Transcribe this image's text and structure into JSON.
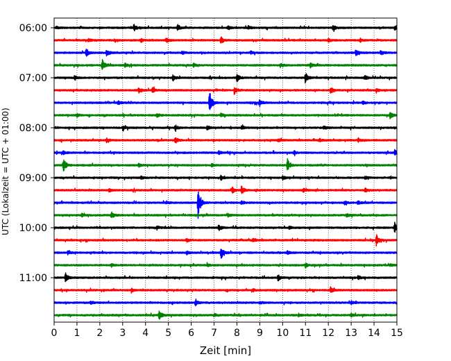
{
  "chart_data": {
    "type": "line",
    "title": "",
    "xlabel": "Zeit  [min]",
    "ylabel": "UTC (Lokalzeit = UTC + 01:00)",
    "xlim": [
      0,
      15
    ],
    "x_ticks": [
      0,
      1,
      2,
      3,
      4,
      5,
      6,
      7,
      8,
      9,
      10,
      11,
      12,
      13,
      14,
      15
    ],
    "x_tick_labels": [
      "0",
      "1",
      "2",
      "3",
      "4",
      "5",
      "6",
      "7",
      "8",
      "9",
      "10",
      "11",
      "12",
      "13",
      "14",
      "15"
    ],
    "grid": "vertical dotted",
    "trace_interval_min": 15,
    "start_time": "06:00",
    "y_tick_labels": [
      "06:00",
      "07:00",
      "08:00",
      "09:00",
      "10:00",
      "11:00"
    ],
    "colors": {
      "black": "#000000",
      "red": "#ff0000",
      "blue": "#0000ff",
      "green": "#008000"
    },
    "series": [
      {
        "row": 0,
        "color": "black",
        "events": [
          [
            0.1,
            0.1
          ],
          [
            3.5,
            0.3
          ],
          [
            5.4,
            0.3
          ],
          [
            7.6,
            0.2
          ],
          [
            8.5,
            0.2
          ],
          [
            12.2,
            0.25
          ],
          [
            14.9,
            0.2
          ]
        ]
      },
      {
        "row": 1,
        "color": "red",
        "events": [
          [
            1.5,
            0.15
          ],
          [
            3.8,
            0.15
          ],
          [
            4.9,
            0.2
          ],
          [
            7.3,
            0.35
          ],
          [
            12.0,
            0.15
          ],
          [
            13.4,
            0.15
          ]
        ]
      },
      {
        "row": 2,
        "color": "blue",
        "events": [
          [
            1.4,
            0.35
          ],
          [
            2.3,
            0.3
          ],
          [
            5.6,
            0.15
          ],
          [
            8.6,
            0.15
          ],
          [
            13.2,
            0.3
          ],
          [
            14.3,
            0.2
          ]
        ]
      },
      {
        "row": 3,
        "color": "green",
        "events": [
          [
            2.1,
            0.55
          ],
          [
            3.1,
            0.2
          ],
          [
            6.1,
            0.15
          ],
          [
            9.9,
            0.15
          ],
          [
            11.2,
            0.25
          ]
        ]
      },
      {
        "row": 4,
        "color": "black",
        "events": [
          [
            0.9,
            0.2
          ],
          [
            5.2,
            0.25
          ],
          [
            8.0,
            0.4
          ],
          [
            11.0,
            0.55
          ],
          [
            13.6,
            0.2
          ]
        ]
      },
      {
        "row": 5,
        "color": "red",
        "events": [
          [
            3.7,
            0.3
          ],
          [
            4.3,
            0.25
          ],
          [
            7.9,
            0.35
          ],
          [
            12.1,
            0.3
          ],
          [
            14.1,
            0.2
          ]
        ]
      },
      {
        "row": 6,
        "color": "blue",
        "events": [
          [
            2.8,
            0.15
          ],
          [
            6.8,
            1.2
          ],
          [
            9.0,
            0.3
          ],
          [
            13.5,
            0.15
          ]
        ]
      },
      {
        "row": 7,
        "color": "green",
        "events": [
          [
            1.0,
            0.15
          ],
          [
            4.5,
            0.15
          ],
          [
            7.3,
            0.2
          ],
          [
            14.7,
            0.3
          ]
        ]
      },
      {
        "row": 8,
        "color": "black",
        "events": [
          [
            3.0,
            0.2
          ],
          [
            5.3,
            0.25
          ],
          [
            6.7,
            0.2
          ],
          [
            8.2,
            0.15
          ],
          [
            11.8,
            0.15
          ]
        ]
      },
      {
        "row": 9,
        "color": "red",
        "events": [
          [
            2.3,
            0.2
          ],
          [
            5.3,
            0.3
          ],
          [
            9.8,
            0.15
          ],
          [
            11.6,
            0.15
          ],
          [
            13.3,
            0.15
          ]
        ]
      },
      {
        "row": 10,
        "color": "blue",
        "events": [
          [
            0.4,
            0.15
          ],
          [
            7.2,
            0.15
          ],
          [
            10.5,
            0.15
          ],
          [
            14.9,
            0.25
          ]
        ]
      },
      {
        "row": 11,
        "color": "green",
        "events": [
          [
            0.4,
            0.7
          ],
          [
            3.7,
            0.15
          ],
          [
            6.9,
            0.15
          ],
          [
            10.2,
            0.6
          ]
        ]
      },
      {
        "row": 12,
        "color": "black",
        "events": [
          [
            3.8,
            0.15
          ],
          [
            7.3,
            0.2
          ],
          [
            10.0,
            0.15
          ],
          [
            13.6,
            0.15
          ]
        ]
      },
      {
        "row": 13,
        "color": "red",
        "events": [
          [
            2.4,
            0.15
          ],
          [
            7.8,
            0.25
          ],
          [
            8.2,
            0.35
          ],
          [
            10.9,
            0.15
          ],
          [
            13.6,
            0.2
          ]
        ]
      },
      {
        "row": 14,
        "color": "blue",
        "events": [
          [
            4.9,
            0.15
          ],
          [
            6.3,
            1.6
          ],
          [
            8.2,
            0.15
          ],
          [
            12.7,
            0.15
          ],
          [
            13.3,
            0.15
          ]
        ]
      },
      {
        "row": 15,
        "color": "green",
        "events": [
          [
            1.2,
            0.15
          ],
          [
            2.5,
            0.35
          ],
          [
            7.6,
            0.15
          ],
          [
            12.8,
            0.15
          ]
        ]
      },
      {
        "row": 16,
        "color": "black",
        "events": [
          [
            4.5,
            0.15
          ],
          [
            7.2,
            0.3
          ],
          [
            10.3,
            0.15
          ],
          [
            14.9,
            0.5
          ]
        ]
      },
      {
        "row": 17,
        "color": "red",
        "events": [
          [
            5.8,
            0.15
          ],
          [
            8.7,
            0.15
          ],
          [
            14.1,
            0.5
          ]
        ]
      },
      {
        "row": 18,
        "color": "blue",
        "events": [
          [
            0.6,
            0.15
          ],
          [
            5.8,
            0.15
          ],
          [
            7.3,
            0.6
          ],
          [
            10.2,
            0.15
          ]
        ]
      },
      {
        "row": 19,
        "color": "green",
        "events": [
          [
            2.5,
            0.15
          ],
          [
            6.7,
            0.15
          ],
          [
            11.0,
            0.2
          ],
          [
            14.7,
            0.15
          ]
        ]
      },
      {
        "row": 20,
        "color": "black",
        "events": [
          [
            0.5,
            0.45
          ],
          [
            9.8,
            0.3
          ],
          [
            13.3,
            0.2
          ]
        ]
      },
      {
        "row": 21,
        "color": "red",
        "events": [
          [
            3.4,
            0.15
          ],
          [
            8.7,
            0.15
          ],
          [
            12.1,
            0.35
          ]
        ]
      },
      {
        "row": 22,
        "color": "blue",
        "events": [
          [
            1.6,
            0.15
          ],
          [
            6.2,
            0.3
          ],
          [
            9.0,
            0.15
          ],
          [
            13.0,
            0.15
          ]
        ]
      },
      {
        "row": 23,
        "color": "green",
        "events": [
          [
            4.6,
            0.4
          ],
          [
            7.0,
            0.15
          ],
          [
            10.7,
            0.15
          ],
          [
            13.0,
            0.15
          ]
        ]
      }
    ]
  }
}
